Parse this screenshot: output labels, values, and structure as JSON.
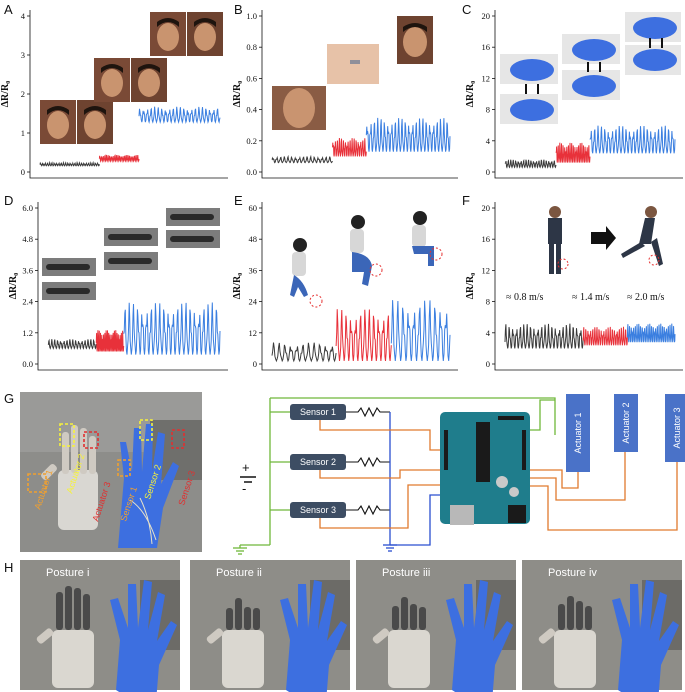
{
  "panels": [
    {
      "letter": "A",
      "y_ticks": [
        "0",
        "1",
        "2",
        "3",
        "4"
      ]
    },
    {
      "letter": "B",
      "y_ticks": [
        "0.0",
        "0.2",
        "0.4",
        "0.6",
        "0.8",
        "1.0"
      ]
    },
    {
      "letter": "C",
      "y_ticks": [
        "0",
        "4",
        "8",
        "12",
        "16",
        "20"
      ]
    },
    {
      "letter": "D",
      "y_ticks": [
        "0.0",
        "1.2",
        "2.4",
        "3.6",
        "4.8",
        "6.0"
      ]
    },
    {
      "letter": "E",
      "y_ticks": [
        "0",
        "12",
        "24",
        "36",
        "48",
        "60"
      ]
    },
    {
      "letter": "F",
      "y_ticks": [
        "0",
        "4",
        "8",
        "12",
        "16",
        "20"
      ]
    }
  ],
  "ylabel": "ΔR/R₀",
  "speeds": [
    "≈ 0.8 m/s",
    "≈ 1.4 m/s",
    "≈ 2.0 m/s"
  ],
  "panel_G": {
    "letter": "G",
    "photo_labels": [
      "Actuator 1",
      "Actuator 2",
      "Actuator 3",
      "Sensor 1",
      "Sensor 2",
      "Sensor 3"
    ],
    "sensors": [
      "Sensor 1",
      "Sensor 2",
      "Sensor 3"
    ],
    "actuators": [
      "Actuator 1",
      "Actuator 2",
      "Actuator 3"
    ],
    "plus": "+",
    "minus": "-"
  },
  "panel_H": {
    "letter": "H",
    "postures": [
      "Posture i",
      "Posture ii",
      "Posture iii",
      "Posture iv"
    ]
  },
  "colors": {
    "black_series": "#3a3a3a",
    "red_series": "#e8313a",
    "blue_series": "#3b7fe0",
    "wire_green": "#6fb83a",
    "wire_orange": "#e07a2e",
    "wire_blue": "#2a4fd0",
    "sensor_box": "#3d4d63",
    "actuator_box": "#4a72c8",
    "glove": "#3d6fe0"
  }
}
